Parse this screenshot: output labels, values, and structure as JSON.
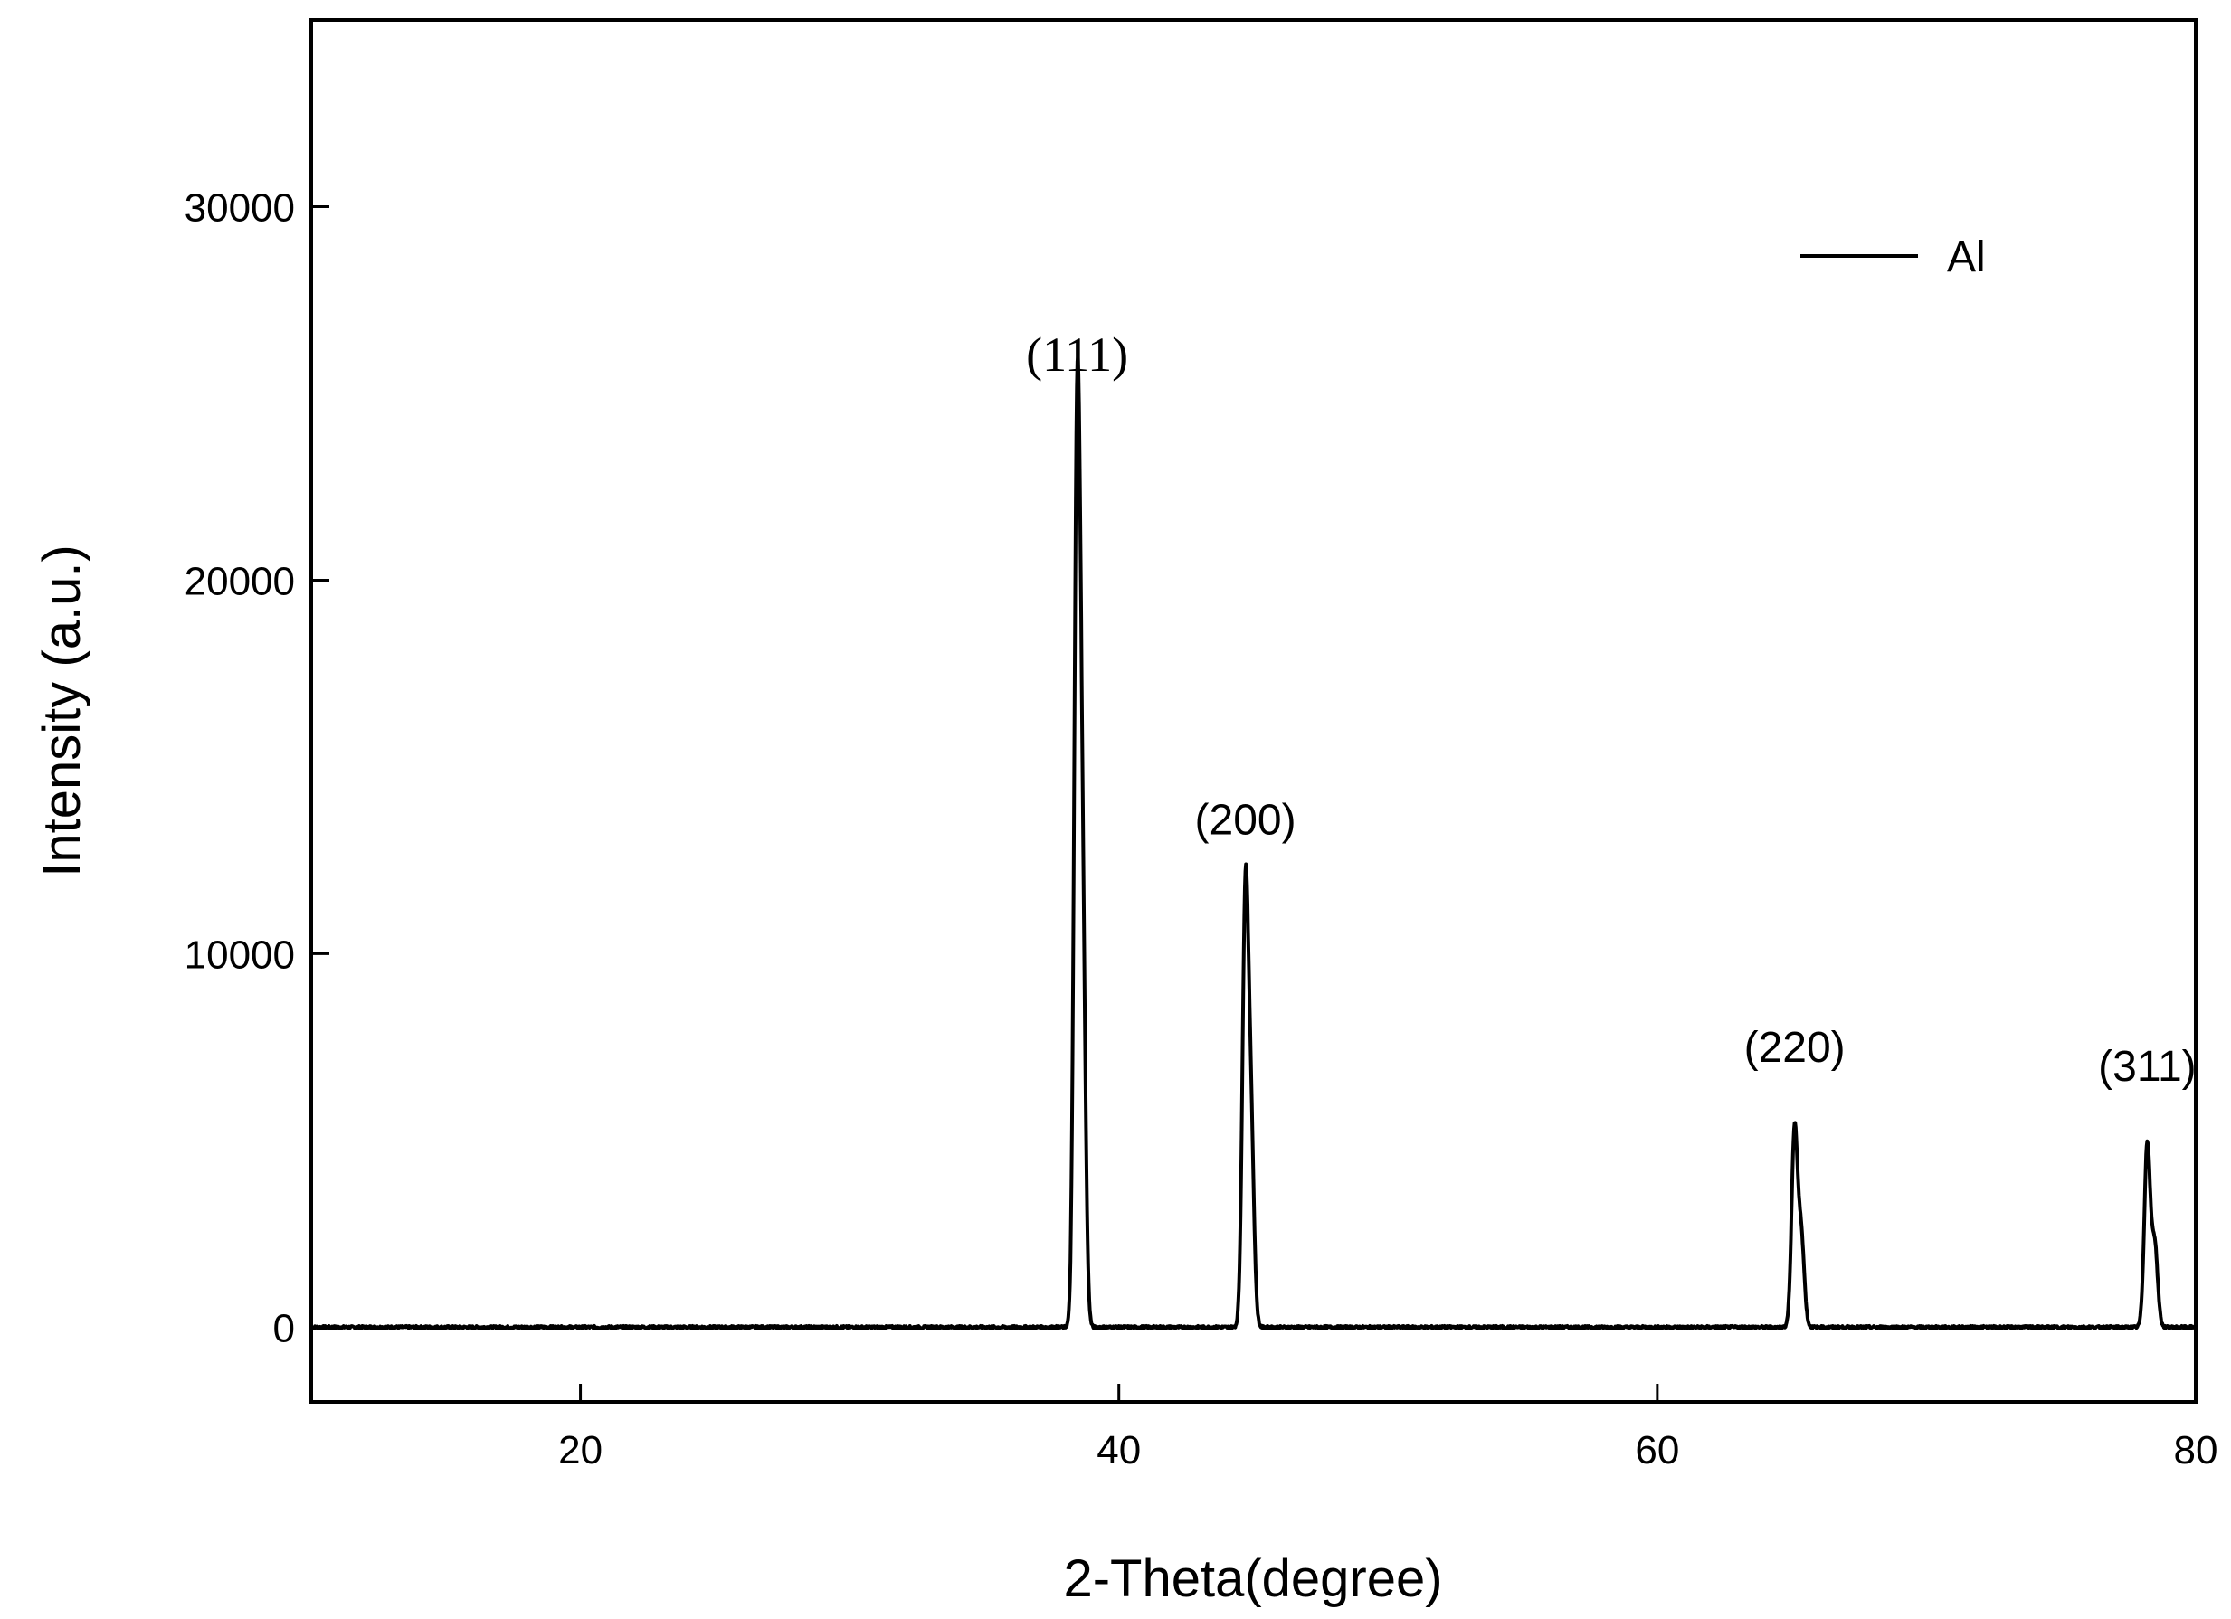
{
  "chart_data": {
    "type": "line",
    "xlabel": "2-Theta(degree)",
    "ylabel": "Intensity (a.u.)",
    "xlim": [
      10,
      80
    ],
    "ylim": [
      -2000,
      35000
    ],
    "xticks": [
      20,
      40,
      60,
      80
    ],
    "yticks": [
      0,
      10000,
      20000,
      30000
    ],
    "grid": false,
    "legend": {
      "position": "top-right",
      "entries": [
        "Al"
      ]
    },
    "series": [
      {
        "name": "Al",
        "color": "#000000",
        "baseline": 0,
        "peaks": [
          {
            "label": "(111)",
            "x": 38.45,
            "y": 23500
          },
          {
            "label": "(200)",
            "x": 44.7,
            "y": 11400
          },
          {
            "label": "(220)",
            "x": 65.1,
            "y": 5300
          },
          {
            "label": "(311)",
            "x": 78.2,
            "y": 4900
          }
        ]
      }
    ],
    "annotations": [
      {
        "text": "(111)",
        "x": 38.45,
        "y": 25600
      },
      {
        "text": "(200)",
        "x": 44.7,
        "y": 13200
      },
      {
        "text": "(220)",
        "x": 65.1,
        "y": 7100
      },
      {
        "text": "(311)",
        "x": 78.2,
        "y": 6600
      }
    ]
  }
}
